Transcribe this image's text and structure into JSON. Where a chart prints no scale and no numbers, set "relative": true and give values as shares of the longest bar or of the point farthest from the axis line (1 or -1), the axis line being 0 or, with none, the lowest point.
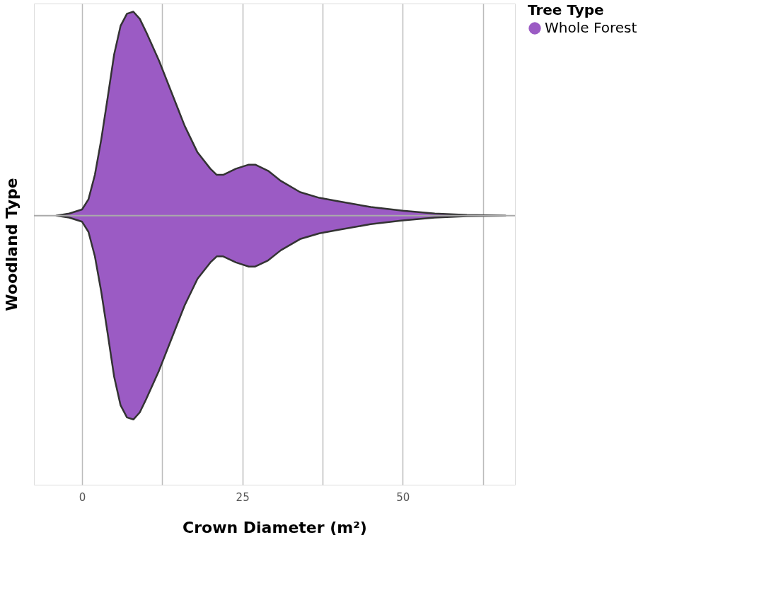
{
  "chart_data": {
    "type": "area",
    "relative": true,
    "xlabel": "Crown Diameter (m²)",
    "ylabel": "Woodland Type",
    "legend_title": "Tree Type",
    "legend": "right",
    "x": [
      -4,
      -2,
      0,
      1,
      2,
      3,
      4,
      5,
      6,
      7,
      8,
      9,
      10,
      12,
      14,
      16,
      18,
      20,
      21,
      22,
      24,
      26,
      27,
      29,
      31,
      34,
      37,
      40,
      45,
      50,
      55,
      60,
      66
    ],
    "series": [
      {
        "name": "Whole Forest",
        "color": "#9b5bc4",
        "values": [
          0,
          0.01,
          0.03,
          0.08,
          0.2,
          0.375,
          0.58,
          0.79,
          0.93,
          0.99,
          1,
          0.965,
          0.9,
          0.76,
          0.6,
          0.44,
          0.31,
          0.23,
          0.2,
          0.2,
          0.23,
          0.25,
          0.25,
          0.22,
          0.17,
          0.115,
          0.087,
          0.07,
          0.042,
          0.024,
          0.01,
          0.003,
          0
        ]
      }
    ],
    "xlim": [
      -7.5,
      67.5
    ],
    "xticks": [
      0,
      {
        "value": 12.5,
        "label": null
      },
      25,
      {
        "value": 37.5,
        "label": null
      },
      50,
      {
        "value": 62.5,
        "label": null
      }
    ],
    "grid": "x",
    "tick_labels": "x"
  }
}
